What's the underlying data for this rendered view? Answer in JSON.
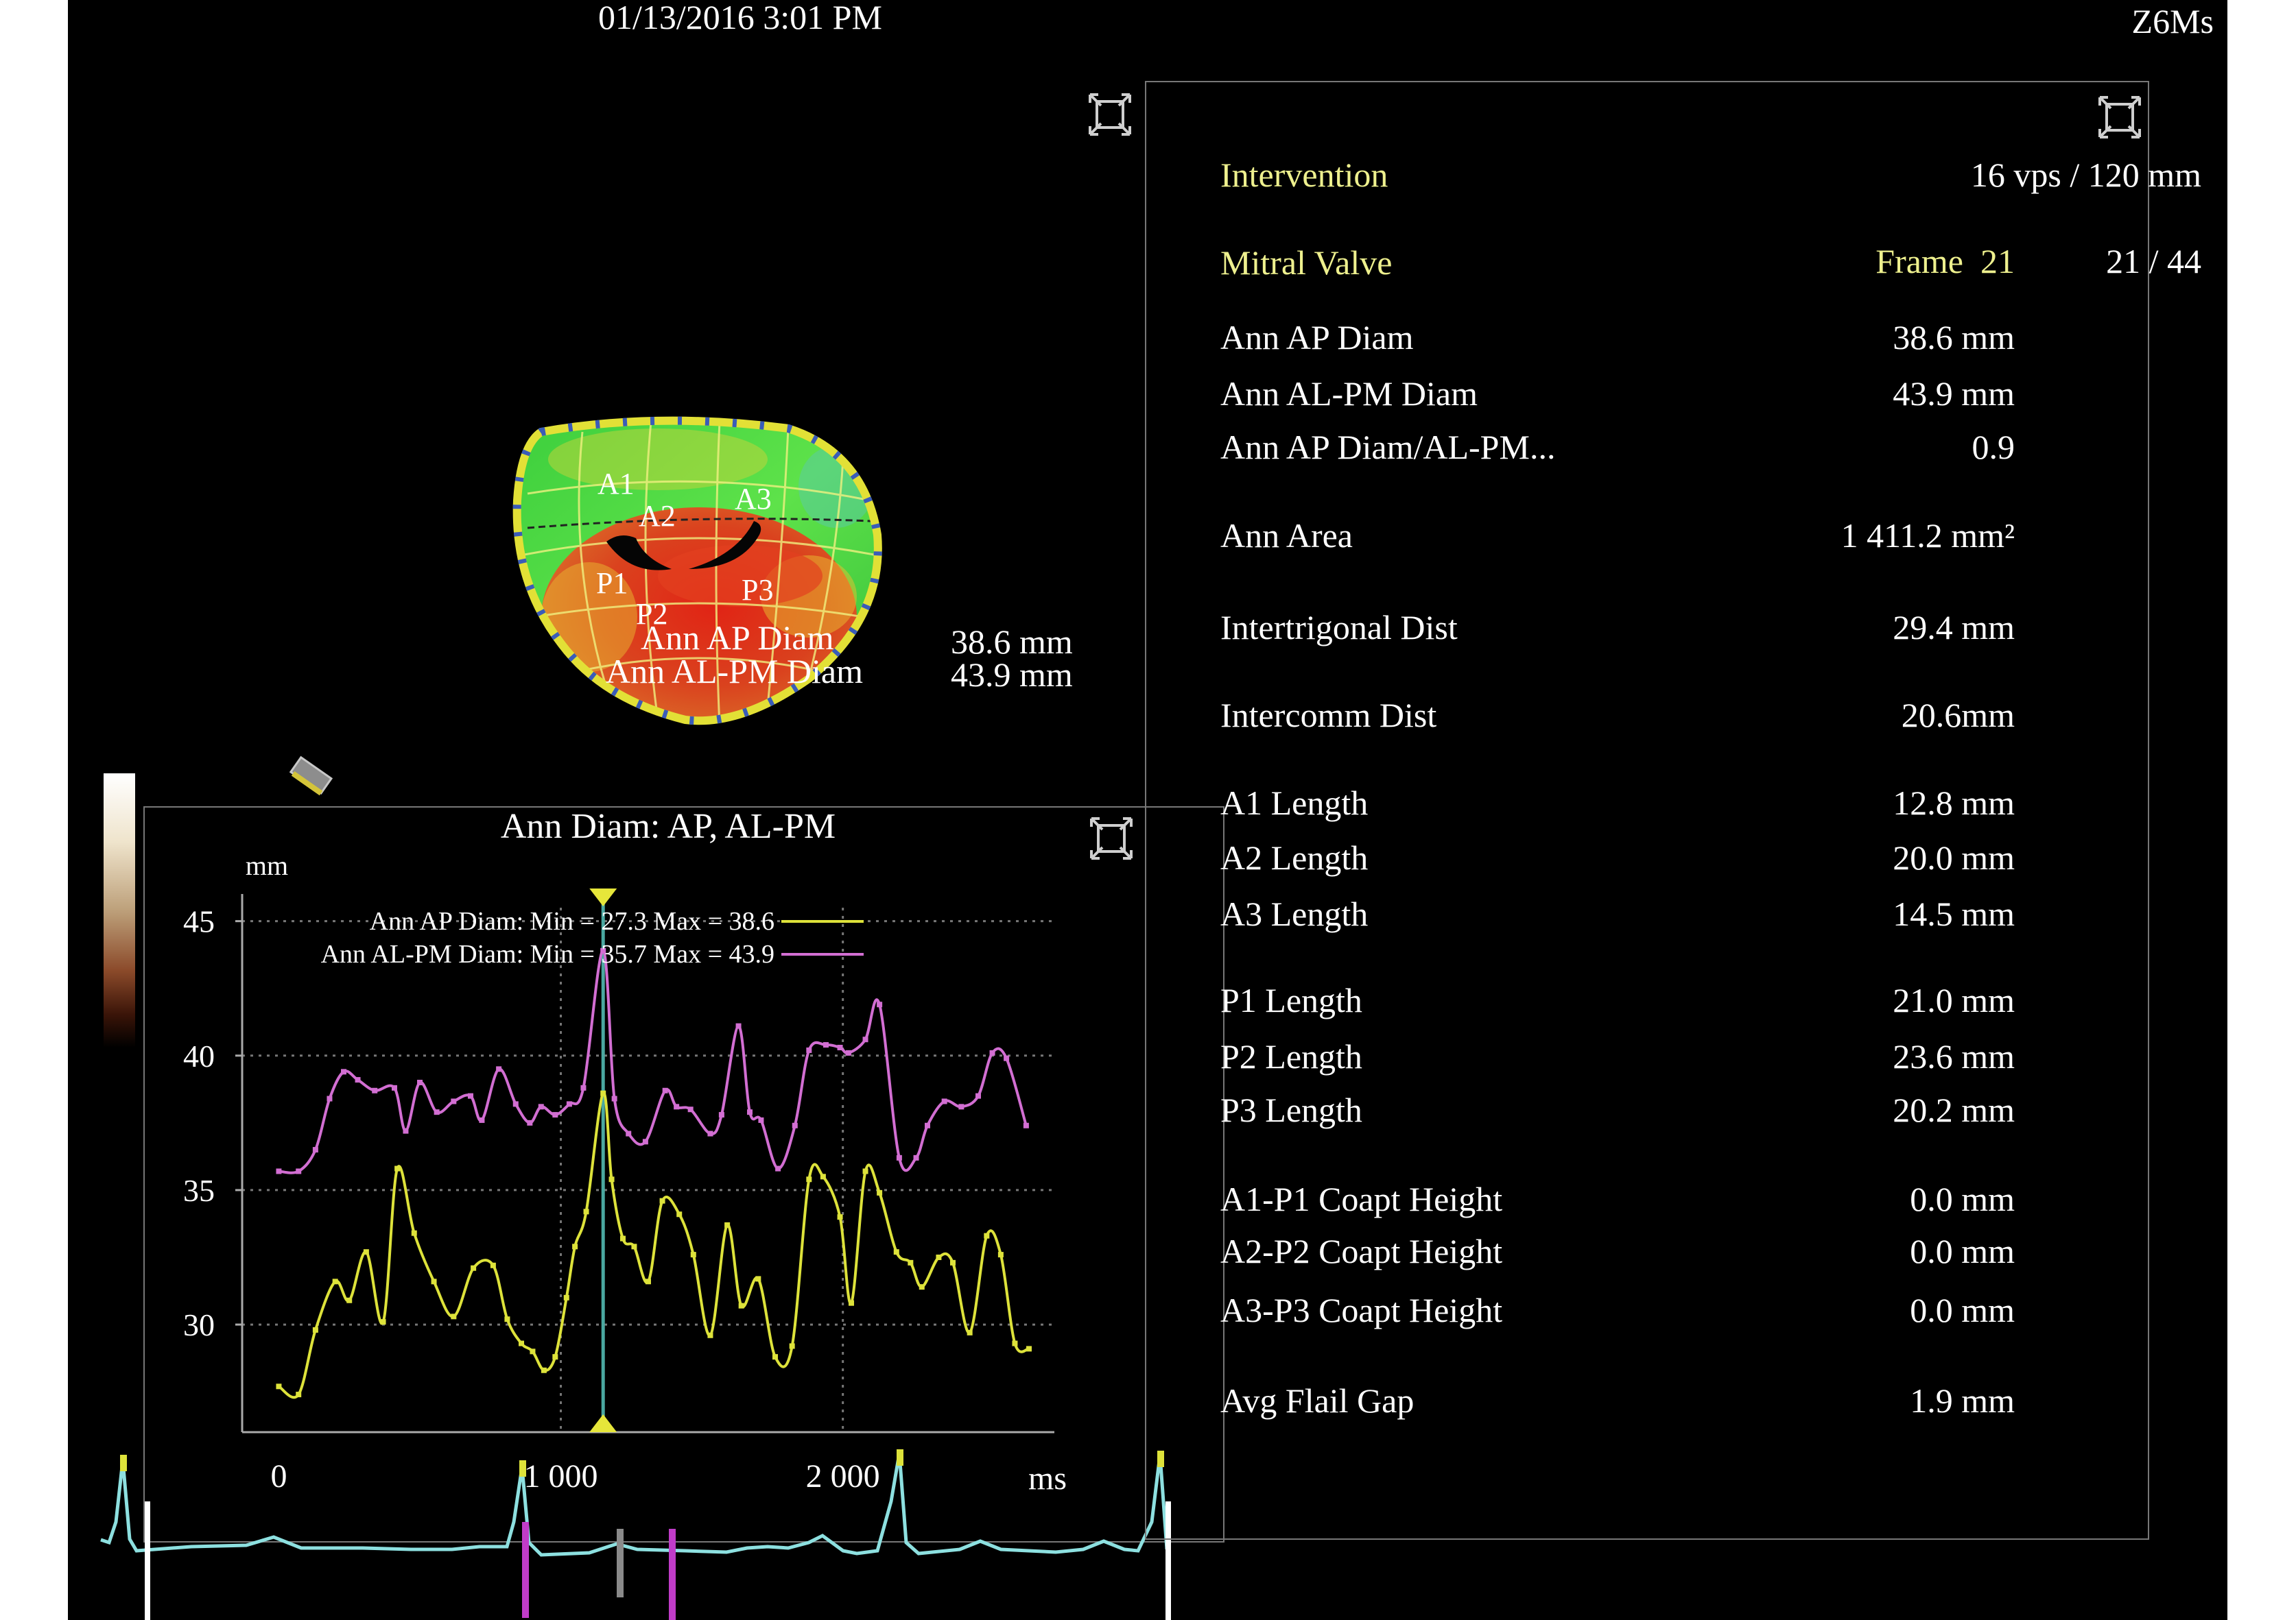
{
  "header": {
    "datetime": "01/13/2016 3:01 PM",
    "probe": "Z6Ms"
  },
  "params": {
    "preset": "Intervention",
    "scan_rate": "16 vps / 120 mm",
    "study": "Mitral Valve",
    "frame_label": "Frame",
    "frame_number": "21",
    "frame_count": "21 / 44"
  },
  "measurements": [
    {
      "label": "Ann AP Diam",
      "value": "38.6 mm"
    },
    {
      "label": "Ann AL-PM Diam",
      "value": "43.9 mm"
    },
    {
      "label": "Ann AP Diam/AL-PM...",
      "value": "0.9"
    },
    {
      "label": "Ann Area",
      "value": "1 411.2 mm²"
    },
    {
      "label": "Intertrigonal Dist",
      "value": "29.4 mm"
    },
    {
      "label": "Intercomm Dist",
      "value": "20.6mm"
    },
    {
      "label": "A1 Length",
      "value": "12.8 mm"
    },
    {
      "label": "A2 Length",
      "value": "20.0 mm"
    },
    {
      "label": "A3 Length",
      "value": "14.5 mm"
    },
    {
      "label": "P1 Length",
      "value": "21.0 mm"
    },
    {
      "label": "P2 Length",
      "value": "23.6 mm"
    },
    {
      "label": "P3 Length",
      "value": "20.2 mm"
    },
    {
      "label": "A1-P1 Coapt Height",
      "value": "0.0 mm"
    },
    {
      "label": "A2-P2 Coapt Height",
      "value": "0.0 mm"
    },
    {
      "label": "A3-P3 Coapt Height",
      "value": "0.0 mm"
    },
    {
      "label": "Avg Flail Gap",
      "value": "1.9 mm"
    }
  ],
  "valve_model": {
    "segments": [
      "A1",
      "A2",
      "A3",
      "P1",
      "P2",
      "P3"
    ],
    "overlay": [
      {
        "label": "Ann AP Diam",
        "value": "38.6 mm"
      },
      {
        "label": "Ann AL-PM Diam",
        "value": "43.9 mm"
      }
    ],
    "colors": {
      "base": "#3ad43a",
      "hot": "#e02a20",
      "warm": "#e8c820",
      "rim": "#e6e63a"
    }
  },
  "chart_data": {
    "type": "line",
    "title": "Ann Diam: AP, AL-PM",
    "ylabel": "mm",
    "xlabel": "ms",
    "xlim": [
      -130,
      2750
    ],
    "ylim": [
      26,
      45.5
    ],
    "xticks": [
      0,
      1000,
      2000
    ],
    "xtick_labels": [
      "0",
      "1 000",
      "2 000"
    ],
    "yticks": [
      45,
      40,
      35,
      30
    ],
    "grid": true,
    "cursor_x": 1150,
    "legend": [
      "Ann AP Diam: Min = 27.3 Max = 38.6",
      "Ann AL-PM Diam: Min = 35.7 Max = 43.9"
    ],
    "series": [
      {
        "name": "Ann AP Diam",
        "color": "#dde23a",
        "x": [
          0,
          70,
          130,
          200,
          250,
          310,
          370,
          420,
          480,
          550,
          620,
          690,
          760,
          810,
          860,
          900,
          940,
          980,
          1020,
          1050,
          1090,
          1150,
          1180,
          1220,
          1260,
          1310,
          1360,
          1420,
          1470,
          1530,
          1590,
          1640,
          1700,
          1760,
          1820,
          1880,
          1930,
          1990,
          2030,
          2080,
          2130,
          2190,
          2240,
          2280,
          2340,
          2390,
          2450,
          2510,
          2560,
          2610,
          2660
        ],
        "y": [
          27.7,
          27.4,
          29.8,
          31.6,
          30.9,
          32.7,
          30.1,
          35.8,
          33.4,
          31.6,
          30.3,
          32.1,
          32.2,
          30.2,
          29.3,
          29.0,
          28.3,
          28.8,
          31.0,
          32.9,
          34.2,
          38.6,
          35.4,
          33.2,
          32.9,
          31.6,
          34.6,
          34.1,
          32.6,
          29.6,
          33.7,
          30.7,
          31.7,
          28.8,
          29.2,
          35.4,
          35.5,
          34.0,
          30.8,
          35.7,
          34.9,
          32.7,
          32.3,
          31.4,
          32.5,
          32.3,
          29.7,
          33.3,
          32.6,
          29.3,
          29.1
        ]
      },
      {
        "name": "Ann AL-PM Diam",
        "color": "#d26ed2",
        "x": [
          0,
          70,
          130,
          180,
          230,
          280,
          340,
          410,
          450,
          500,
          560,
          620,
          680,
          720,
          780,
          840,
          890,
          930,
          980,
          1030,
          1080,
          1150,
          1190,
          1240,
          1300,
          1370,
          1410,
          1460,
          1530,
          1570,
          1630,
          1670,
          1710,
          1770,
          1830,
          1880,
          1940,
          1990,
          2020,
          2080,
          2130,
          2200,
          2260,
          2300,
          2360,
          2420,
          2480,
          2530,
          2580,
          2650
        ],
        "y": [
          35.7,
          35.7,
          36.5,
          38.4,
          39.4,
          39.1,
          38.7,
          38.8,
          37.2,
          39.0,
          37.9,
          38.3,
          38.5,
          37.6,
          39.5,
          38.2,
          37.5,
          38.1,
          37.8,
          38.2,
          38.8,
          43.9,
          38.4,
          37.1,
          36.8,
          38.7,
          38.1,
          38.0,
          37.1,
          37.8,
          41.1,
          37.9,
          37.6,
          35.8,
          37.4,
          40.2,
          40.4,
          40.3,
          40.1,
          40.6,
          41.9,
          36.2,
          36.2,
          37.4,
          38.3,
          38.1,
          38.5,
          40.1,
          39.9,
          37.4
        ]
      }
    ]
  },
  "ecg": {
    "color": "#8de0e0"
  }
}
